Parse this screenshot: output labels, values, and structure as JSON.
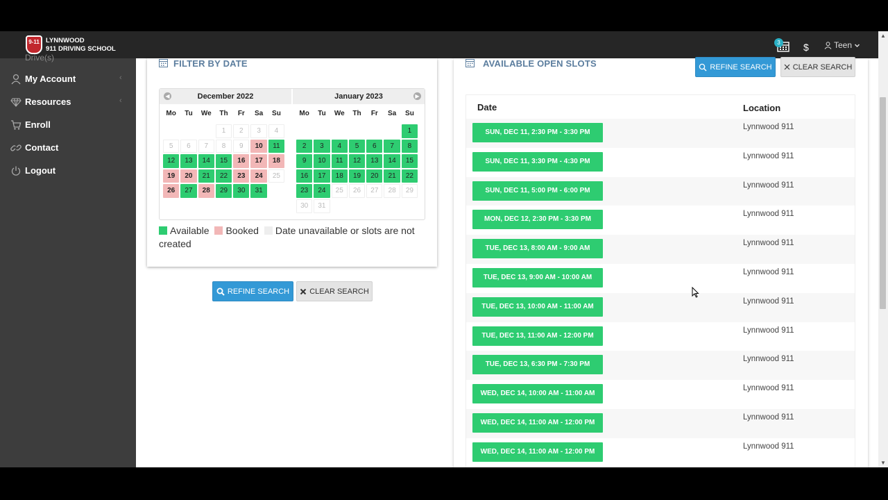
{
  "header": {
    "logo_text": "9-11",
    "brand_line1": "LYNNWOOD",
    "brand_line2": "911 DRIVING SCHOOL",
    "cart_count": "3",
    "dollar_label": "$",
    "user_label": "Teen"
  },
  "sidebar": {
    "cut_item": "Drive(s)",
    "items": [
      {
        "label": "My Account",
        "icon": "user-icon",
        "has_chevron": true
      },
      {
        "label": "Resources",
        "icon": "diamond-icon",
        "has_chevron": true
      },
      {
        "label": "Enroll",
        "icon": "cart-icon",
        "has_chevron": false
      },
      {
        "label": "Contact",
        "icon": "link-icon",
        "has_chevron": false
      },
      {
        "label": "Logout",
        "icon": "power-icon",
        "has_chevron": false
      }
    ],
    "chevron": "‹"
  },
  "filter": {
    "title": "FILTER BY DATE",
    "months": [
      {
        "name": "December 2022",
        "lead_blank": 3,
        "days": [
          {
            "d": "1",
            "s": "na"
          },
          {
            "d": "2",
            "s": "na"
          },
          {
            "d": "3",
            "s": "na"
          },
          {
            "d": "4",
            "s": "na"
          },
          {
            "d": "5",
            "s": "na"
          },
          {
            "d": "6",
            "s": "na"
          },
          {
            "d": "7",
            "s": "na"
          },
          {
            "d": "8",
            "s": "na"
          },
          {
            "d": "9",
            "s": "na"
          },
          {
            "d": "10",
            "s": "booked"
          },
          {
            "d": "11",
            "s": "avail"
          },
          {
            "d": "12",
            "s": "avail"
          },
          {
            "d": "13",
            "s": "avail"
          },
          {
            "d": "14",
            "s": "avail"
          },
          {
            "d": "15",
            "s": "avail"
          },
          {
            "d": "16",
            "s": "booked"
          },
          {
            "d": "17",
            "s": "booked"
          },
          {
            "d": "18",
            "s": "booked"
          },
          {
            "d": "19",
            "s": "booked"
          },
          {
            "d": "20",
            "s": "booked"
          },
          {
            "d": "21",
            "s": "avail"
          },
          {
            "d": "22",
            "s": "avail"
          },
          {
            "d": "23",
            "s": "booked"
          },
          {
            "d": "24",
            "s": "booked"
          },
          {
            "d": "25",
            "s": "na"
          },
          {
            "d": "26",
            "s": "booked"
          },
          {
            "d": "27",
            "s": "avail"
          },
          {
            "d": "28",
            "s": "booked"
          },
          {
            "d": "29",
            "s": "avail"
          },
          {
            "d": "30",
            "s": "avail"
          },
          {
            "d": "31",
            "s": "avail"
          }
        ]
      },
      {
        "name": "January 2023",
        "lead_blank": 6,
        "days": [
          {
            "d": "1",
            "s": "avail"
          },
          {
            "d": "2",
            "s": "avail"
          },
          {
            "d": "3",
            "s": "avail"
          },
          {
            "d": "4",
            "s": "avail"
          },
          {
            "d": "5",
            "s": "avail"
          },
          {
            "d": "6",
            "s": "avail"
          },
          {
            "d": "7",
            "s": "avail"
          },
          {
            "d": "8",
            "s": "avail"
          },
          {
            "d": "9",
            "s": "avail"
          },
          {
            "d": "10",
            "s": "avail"
          },
          {
            "d": "11",
            "s": "avail"
          },
          {
            "d": "12",
            "s": "avail"
          },
          {
            "d": "13",
            "s": "avail"
          },
          {
            "d": "14",
            "s": "avail"
          },
          {
            "d": "15",
            "s": "avail"
          },
          {
            "d": "16",
            "s": "avail"
          },
          {
            "d": "17",
            "s": "avail"
          },
          {
            "d": "18",
            "s": "avail"
          },
          {
            "d": "19",
            "s": "avail"
          },
          {
            "d": "20",
            "s": "avail"
          },
          {
            "d": "21",
            "s": "avail"
          },
          {
            "d": "22",
            "s": "avail"
          },
          {
            "d": "23",
            "s": "avail"
          },
          {
            "d": "24",
            "s": "avail"
          },
          {
            "d": "25",
            "s": "na"
          },
          {
            "d": "26",
            "s": "na"
          },
          {
            "d": "27",
            "s": "na"
          },
          {
            "d": "28",
            "s": "na"
          },
          {
            "d": "29",
            "s": "na"
          },
          {
            "d": "30",
            "s": "na"
          },
          {
            "d": "31",
            "s": "na"
          }
        ]
      }
    ],
    "weekdays": [
      "Mo",
      "Tu",
      "We",
      "Th",
      "Fr",
      "Sa",
      "Su"
    ],
    "legend": {
      "available": "Available",
      "booked": "Booked",
      "unavailable": "Date unavailable or slots are not created"
    },
    "refine_label": "REFINE SEARCH",
    "clear_label": "CLEAR SEARCH"
  },
  "slots": {
    "title": "AVAILABLE OPEN SLOTS",
    "refine_label": "REFINE SEARCH",
    "clear_label": "CLEAR SEARCH",
    "col_date": "Date",
    "col_location": "Location",
    "rows": [
      {
        "date": "SUN, DEC 11, 2:30 PM - 3:30 PM",
        "location": "Lynnwood 911"
      },
      {
        "date": "SUN, DEC 11, 3:30 PM - 4:30 PM",
        "location": "Lynnwood 911"
      },
      {
        "date": "SUN, DEC 11, 5:00 PM - 6:00 PM",
        "location": "Lynnwood 911"
      },
      {
        "date": "MON, DEC 12, 2:30 PM - 3:30 PM",
        "location": "Lynnwood 911"
      },
      {
        "date": "TUE, DEC 13, 8:00 AM - 9:00 AM",
        "location": "Lynnwood 911"
      },
      {
        "date": "TUE, DEC 13, 9:00 AM - 10:00 AM",
        "location": "Lynnwood 911"
      },
      {
        "date": "TUE, DEC 13, 10:00 AM - 11:00 AM",
        "location": "Lynnwood 911"
      },
      {
        "date": "TUE, DEC 13, 11:00 AM - 12:00 PM",
        "location": "Lynnwood 911"
      },
      {
        "date": "TUE, DEC 13, 6:30 PM - 7:30 PM",
        "location": "Lynnwood 911"
      },
      {
        "date": "WED, DEC 14, 10:00 AM - 11:00 AM",
        "location": "Lynnwood 911"
      },
      {
        "date": "WED, DEC 14, 11:00 AM - 12:00 PM",
        "location": "Lynnwood 911"
      },
      {
        "date": "WED, DEC 14, 11:00 AM - 12:00 PM",
        "location": "Lynnwood 911"
      }
    ]
  },
  "colors": {
    "available": "#2ecc71",
    "booked": "#f2b7b7",
    "primary": "#3399d6",
    "sidebar": "#3d3d3d",
    "topbar": "#262626"
  }
}
